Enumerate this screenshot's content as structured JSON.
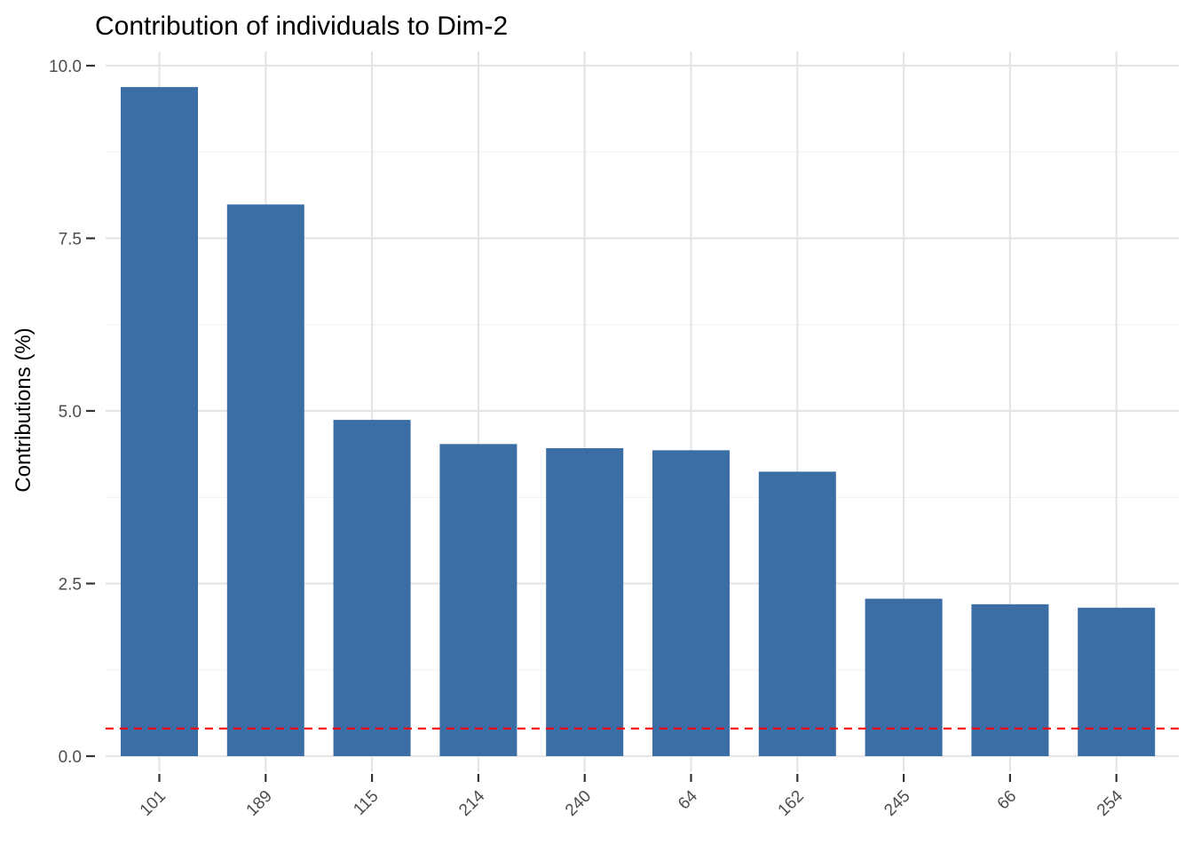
{
  "chart_data": {
    "type": "bar",
    "title": "Contribution of individuals to Dim-2",
    "xlabel": "",
    "ylabel": "Contributions (%)",
    "categories": [
      "101",
      "189",
      "115",
      "214",
      "240",
      "64",
      "162",
      "245",
      "66",
      "254"
    ],
    "values": [
      9.69,
      7.99,
      4.87,
      4.52,
      4.46,
      4.43,
      4.12,
      2.28,
      2.2,
      2.15
    ],
    "ylim": [
      0,
      10
    ],
    "yticks": [
      "0.0",
      "2.5",
      "5.0",
      "7.5",
      "10.0"
    ],
    "reference_line": {
      "value": 0.4,
      "style": "dashed",
      "color": "#ff0000"
    },
    "bar_color": "#3a6ea5",
    "grid": true,
    "legend": "none"
  }
}
